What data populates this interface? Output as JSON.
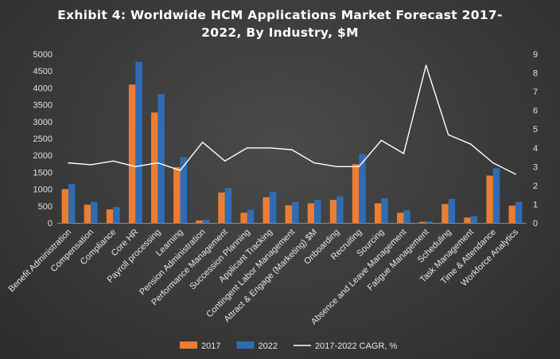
{
  "chart_data": {
    "type": "bar",
    "title_lines": [
      "Exhibit 4: Worldwide HCM Applications Market Forecast 2017-",
      "2022, By Industry, $M"
    ],
    "categories": [
      "Benefit Administration",
      "Compensation",
      "Compliance",
      "Core HR",
      "Payroll processing",
      "Learning",
      "Pension Administration",
      "Performance Management",
      "Succession Planning",
      "Applicant Tracking",
      "Contingent Labor Management",
      "Attract & Engage (Marketing) $M",
      "Onboarding",
      "Recruiting",
      "Sourcing",
      "Absence and Leave Management",
      "Fatigue Management",
      "Scheduling",
      "Task Management",
      "Time & Attendance",
      "Workforce Analytics"
    ],
    "series": [
      {
        "name": "2017",
        "type": "bar",
        "axis": "left",
        "color": "#ed7d31",
        "values": [
          1000,
          540,
          400,
          4100,
          3270,
          1650,
          70,
          900,
          300,
          760,
          520,
          580,
          680,
          1740,
          580,
          300,
          30,
          560,
          160,
          1400,
          510
        ]
      },
      {
        "name": "2022",
        "type": "bar",
        "axis": "left",
        "color": "#2e6db4",
        "values": [
          1150,
          620,
          470,
          4770,
          3820,
          1950,
          90,
          1030,
          390,
          920,
          620,
          680,
          790,
          2040,
          730,
          370,
          40,
          710,
          200,
          1620,
          620
        ]
      },
      {
        "name": "2017-2022 CAGR, %",
        "type": "line",
        "axis": "right",
        "color": "#ffffff",
        "values": [
          3.2,
          3.1,
          3.3,
          3.0,
          3.2,
          2.8,
          4.3,
          3.3,
          4.0,
          4.0,
          3.9,
          3.2,
          3.0,
          3.0,
          4.4,
          3.7,
          8.4,
          4.7,
          4.2,
          3.2,
          2.6
        ]
      }
    ],
    "y_left": {
      "min": 0,
      "max": 5000,
      "ticks": [
        0,
        500,
        1000,
        1500,
        2000,
        2500,
        3000,
        3500,
        4000,
        4500,
        5000
      ]
    },
    "y_right": {
      "min": 0,
      "max": 9,
      "ticks": [
        0,
        1,
        2,
        3,
        4,
        5,
        6,
        7,
        8,
        9
      ]
    },
    "legend_position": "bottom",
    "gridlines": false
  }
}
